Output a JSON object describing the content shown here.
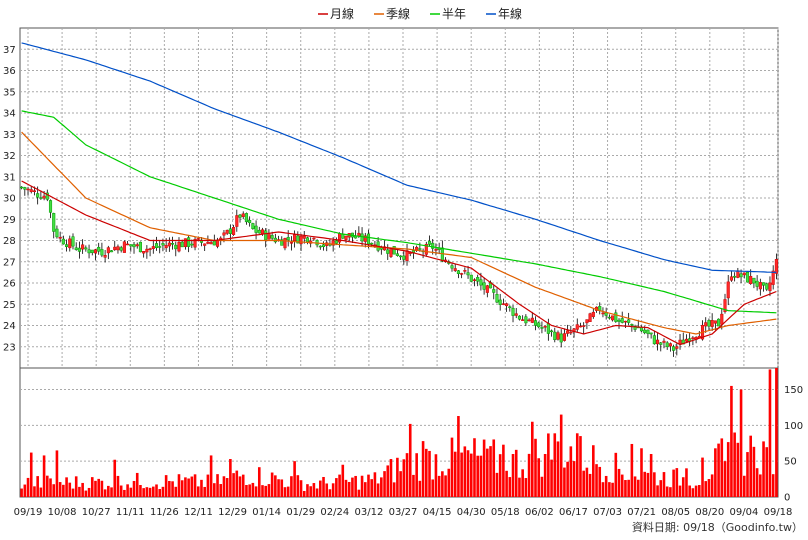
{
  "chart_data": {
    "type": "candlestick",
    "legend": {
      "placement": "top-center",
      "items": [
        {
          "label": "月線",
          "color": "#cc0000"
        },
        {
          "label": "季線",
          "color": "#e06000"
        },
        {
          "label": "半年",
          "color": "#00cc00"
        },
        {
          "label": "年線",
          "color": "#0050c8"
        }
      ]
    },
    "price_axis": {
      "ticks": [
        23,
        24,
        25,
        26,
        27,
        28,
        29,
        30,
        31,
        32,
        33,
        34,
        35,
        36,
        37
      ],
      "range": [
        22,
        38
      ]
    },
    "volume_axis": {
      "ticks": [
        0,
        50,
        100,
        150
      ],
      "range": [
        0,
        180
      ]
    },
    "x_tick_labels": [
      "09/19",
      "10/08",
      "10/27",
      "11/11",
      "11/26",
      "12/11",
      "12/29",
      "01/14",
      "01/29",
      "02/24",
      "03/12",
      "03/27",
      "04/15",
      "04/30",
      "05/18",
      "06/02",
      "06/17",
      "07/03",
      "07/21",
      "08/05",
      "08/20",
      "09/04",
      "09/18"
    ],
    "close_anchors": [
      [
        0,
        30.5
      ],
      [
        5,
        30.2
      ],
      [
        8,
        30.1
      ],
      [
        10,
        28.5
      ],
      [
        12,
        28.1
      ],
      [
        18,
        27.6
      ],
      [
        25,
        27.5
      ],
      [
        32,
        27.8
      ],
      [
        40,
        27.6
      ],
      [
        45,
        27.8
      ],
      [
        55,
        27.9
      ],
      [
        62,
        28.0
      ],
      [
        65,
        28.5
      ],
      [
        68,
        29.2
      ],
      [
        72,
        28.5
      ],
      [
        80,
        28.0
      ],
      [
        90,
        28.2
      ],
      [
        95,
        27.7
      ],
      [
        100,
        28.3
      ],
      [
        108,
        28.0
      ],
      [
        115,
        27.5
      ],
      [
        120,
        27.3
      ],
      [
        128,
        27.7
      ],
      [
        132,
        27.1
      ],
      [
        140,
        26.2
      ],
      [
        148,
        25.3
      ],
      [
        155,
        24.4
      ],
      [
        162,
        23.9
      ],
      [
        168,
        23.4
      ],
      [
        175,
        24.0
      ],
      [
        180,
        24.8
      ],
      [
        186,
        24.2
      ],
      [
        192,
        23.9
      ],
      [
        198,
        23.2
      ],
      [
        203,
        22.9
      ],
      [
        208,
        23.5
      ],
      [
        213,
        23.9
      ],
      [
        217,
        24.1
      ],
      [
        221,
        26.5
      ],
      [
        228,
        26.1
      ],
      [
        232,
        25.5
      ],
      [
        235,
        27.0
      ]
    ],
    "ma_month": [
      [
        0,
        30.8
      ],
      [
        20,
        29.2
      ],
      [
        40,
        28.0
      ],
      [
        60,
        28.0
      ],
      [
        80,
        28.4
      ],
      [
        100,
        28.0
      ],
      [
        120,
        27.5
      ],
      [
        140,
        26.7
      ],
      [
        155,
        25.0
      ],
      [
        165,
        24.0
      ],
      [
        175,
        23.6
      ],
      [
        185,
        24.0
      ],
      [
        195,
        23.9
      ],
      [
        205,
        23.1
      ],
      [
        215,
        23.6
      ],
      [
        225,
        25.0
      ],
      [
        235,
        25.6
      ]
    ],
    "ma_quarter": [
      [
        0,
        33.1
      ],
      [
        20,
        30.0
      ],
      [
        40,
        28.6
      ],
      [
        60,
        28.0
      ],
      [
        80,
        28.0
      ],
      [
        100,
        27.8
      ],
      [
        120,
        27.6
      ],
      [
        140,
        27.2
      ],
      [
        160,
        25.8
      ],
      [
        180,
        24.7
      ],
      [
        200,
        23.9
      ],
      [
        210,
        23.6
      ],
      [
        220,
        24.0
      ],
      [
        235,
        24.3
      ]
    ],
    "ma_half": [
      [
        0,
        34.1
      ],
      [
        10,
        33.8
      ],
      [
        20,
        32.5
      ],
      [
        40,
        31.0
      ],
      [
        60,
        30.0
      ],
      [
        80,
        29.0
      ],
      [
        100,
        28.3
      ],
      [
        120,
        27.9
      ],
      [
        140,
        27.4
      ],
      [
        160,
        26.9
      ],
      [
        180,
        26.3
      ],
      [
        200,
        25.6
      ],
      [
        220,
        24.7
      ],
      [
        235,
        24.6
      ]
    ],
    "ma_year": [
      [
        0,
        37.3
      ],
      [
        20,
        36.5
      ],
      [
        40,
        35.5
      ],
      [
        60,
        34.2
      ],
      [
        80,
        33.1
      ],
      [
        100,
        31.9
      ],
      [
        120,
        30.6
      ],
      [
        140,
        29.9
      ],
      [
        160,
        29.0
      ],
      [
        180,
        28.0
      ],
      [
        200,
        27.1
      ],
      [
        215,
        26.6
      ],
      [
        235,
        26.5
      ]
    ],
    "volume_anchors": [
      [
        0,
        25
      ],
      [
        20,
        25
      ],
      [
        40,
        28
      ],
      [
        60,
        25
      ],
      [
        70,
        40
      ],
      [
        90,
        22
      ],
      [
        110,
        30
      ],
      [
        120,
        60
      ],
      [
        140,
        70
      ],
      [
        155,
        60
      ],
      [
        168,
        90
      ],
      [
        175,
        70
      ],
      [
        190,
        40
      ],
      [
        200,
        35
      ],
      [
        210,
        30
      ],
      [
        220,
        75
      ],
      [
        226,
        80
      ],
      [
        235,
        70
      ]
    ],
    "volume_spikes": [
      [
        3,
        62
      ],
      [
        7,
        58
      ],
      [
        11,
        65
      ],
      [
        29,
        52
      ],
      [
        59,
        58
      ],
      [
        65,
        53
      ],
      [
        85,
        50
      ],
      [
        100,
        45
      ],
      [
        121,
        102
      ],
      [
        125,
        78
      ],
      [
        136,
        113
      ],
      [
        146,
        71
      ],
      [
        150,
        73
      ],
      [
        159,
        105
      ],
      [
        163,
        60
      ],
      [
        168,
        115
      ],
      [
        174,
        85
      ],
      [
        190,
        74
      ],
      [
        193,
        68
      ],
      [
        196,
        60
      ],
      [
        207,
        40
      ],
      [
        212,
        55
      ],
      [
        219,
        50
      ],
      [
        221,
        155
      ],
      [
        224,
        150
      ],
      [
        228,
        70
      ],
      [
        233,
        178
      ],
      [
        235,
        180
      ]
    ],
    "source_text": "資料日期: 09/18（Goodinfo.tw）"
  }
}
